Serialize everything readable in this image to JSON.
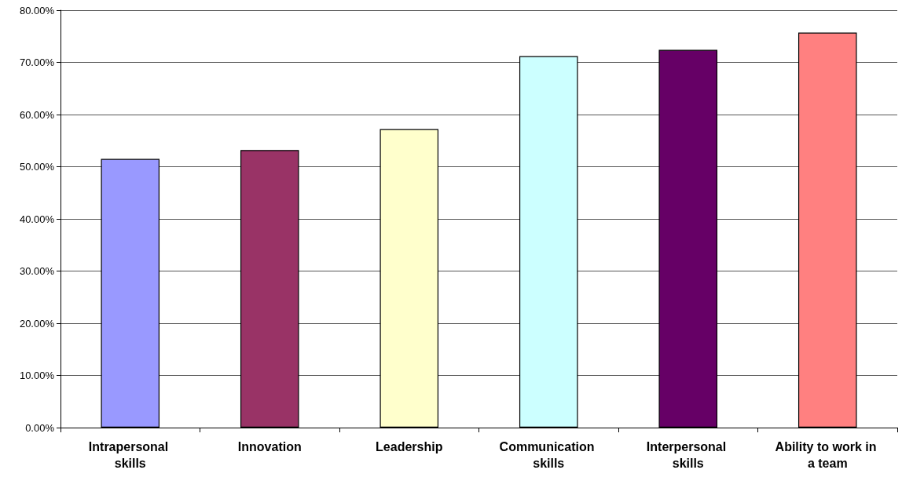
{
  "chart_data": {
    "type": "bar",
    "categories": [
      "Intrapersonal skills",
      "Innovation",
      "Leadership",
      "Communication skills",
      "Interpersonal skills",
      "Ability to work in a team"
    ],
    "values": [
      51.5,
      53.2,
      57.2,
      71.2,
      72.4,
      75.7
    ],
    "colors": [
      "#9999ff",
      "#993366",
      "#ffffcc",
      "#ccffff",
      "#660066",
      "#ff8080"
    ],
    "ylim": [
      0,
      80
    ],
    "yticks": [
      {
        "value": 0,
        "label": "0.00%"
      },
      {
        "value": 10,
        "label": "10.00%"
      },
      {
        "value": 20,
        "label": "20.00%"
      },
      {
        "value": 30,
        "label": "30.00%"
      },
      {
        "value": 40,
        "label": "40.00%"
      },
      {
        "value": 50,
        "label": "50.00%"
      },
      {
        "value": 60,
        "label": "60.00%"
      },
      {
        "value": 70,
        "label": "70.00%"
      },
      {
        "value": 80,
        "label": "80.00%"
      }
    ],
    "grid": "y"
  }
}
